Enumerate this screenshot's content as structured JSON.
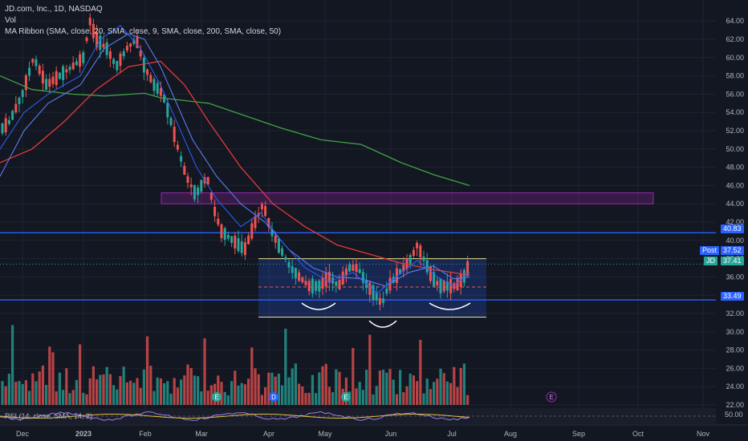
{
  "legend": {
    "title": "JD.com, Inc., 1D, NASDAQ",
    "vol": "Vol",
    "ma": "MA Ribbon (SMA, close, 20, SMA, close, 9, SMA, close, 200, SMA, close, 50)"
  },
  "rsi_legend": "RSI (14, close, SMA, 14, 2)",
  "rsi_value": "50.00",
  "price_labels": {
    "post_label": "Post",
    "post_value": "37.52",
    "jd_label": "JD",
    "jd_value": "37.41",
    "line_high": "40.83",
    "line_low": "33.49"
  },
  "event_markers": [
    "E",
    "D",
    "E",
    "E"
  ],
  "colors": {
    "background": "#131722",
    "up": "#26a69a",
    "down": "#ef5350",
    "sma9": "#2962ff",
    "sma20": "#5b7cf0",
    "sma50": "#e53935",
    "sma200": "#43a047",
    "hline": "#2962ff",
    "zone": "#9c27b0",
    "range_box": "#2962ff",
    "range_border": "#e6e08a",
    "rsi": "#9c7cf0",
    "rsi_ma": "#e0c040"
  },
  "chart_data": {
    "type": "candlestick",
    "title": "JD.com, Inc., 1D, NASDAQ",
    "y_axis_ticks": [
      22.0,
      24.0,
      26.0,
      28.0,
      30.0,
      32.0,
      34.0,
      36.0,
      38.0,
      40.0,
      42.0,
      44.0,
      46.0,
      48.0,
      50.0,
      52.0,
      54.0,
      56.0,
      58.0,
      60.0,
      62.0,
      64.0
    ],
    "x_axis_ticks": [
      "Dec",
      "2023",
      "Feb",
      "Mar",
      "Apr",
      "May",
      "Jun",
      "Jul",
      "Aug",
      "Sep",
      "Oct",
      "Nov"
    ],
    "ylim": [
      21,
      66
    ],
    "horizontal_lines": [
      40.83,
      33.49
    ],
    "zone": {
      "low": 44.0,
      "high": 45.2,
      "from": "Feb",
      "to": "Oct"
    },
    "range_box": {
      "low": 31.6,
      "high": 38.0,
      "from": "Apr",
      "to": "Jul"
    },
    "last_price": 37.41,
    "post_price": 37.52,
    "series": [
      {
        "name": "SMA 9",
        "type": "line"
      },
      {
        "name": "SMA 20",
        "type": "line"
      },
      {
        "name": "SMA 50",
        "type": "line"
      },
      {
        "name": "SMA 200",
        "type": "line"
      },
      {
        "name": "Vol",
        "type": "bar"
      },
      {
        "name": "RSI",
        "type": "line"
      }
    ]
  }
}
